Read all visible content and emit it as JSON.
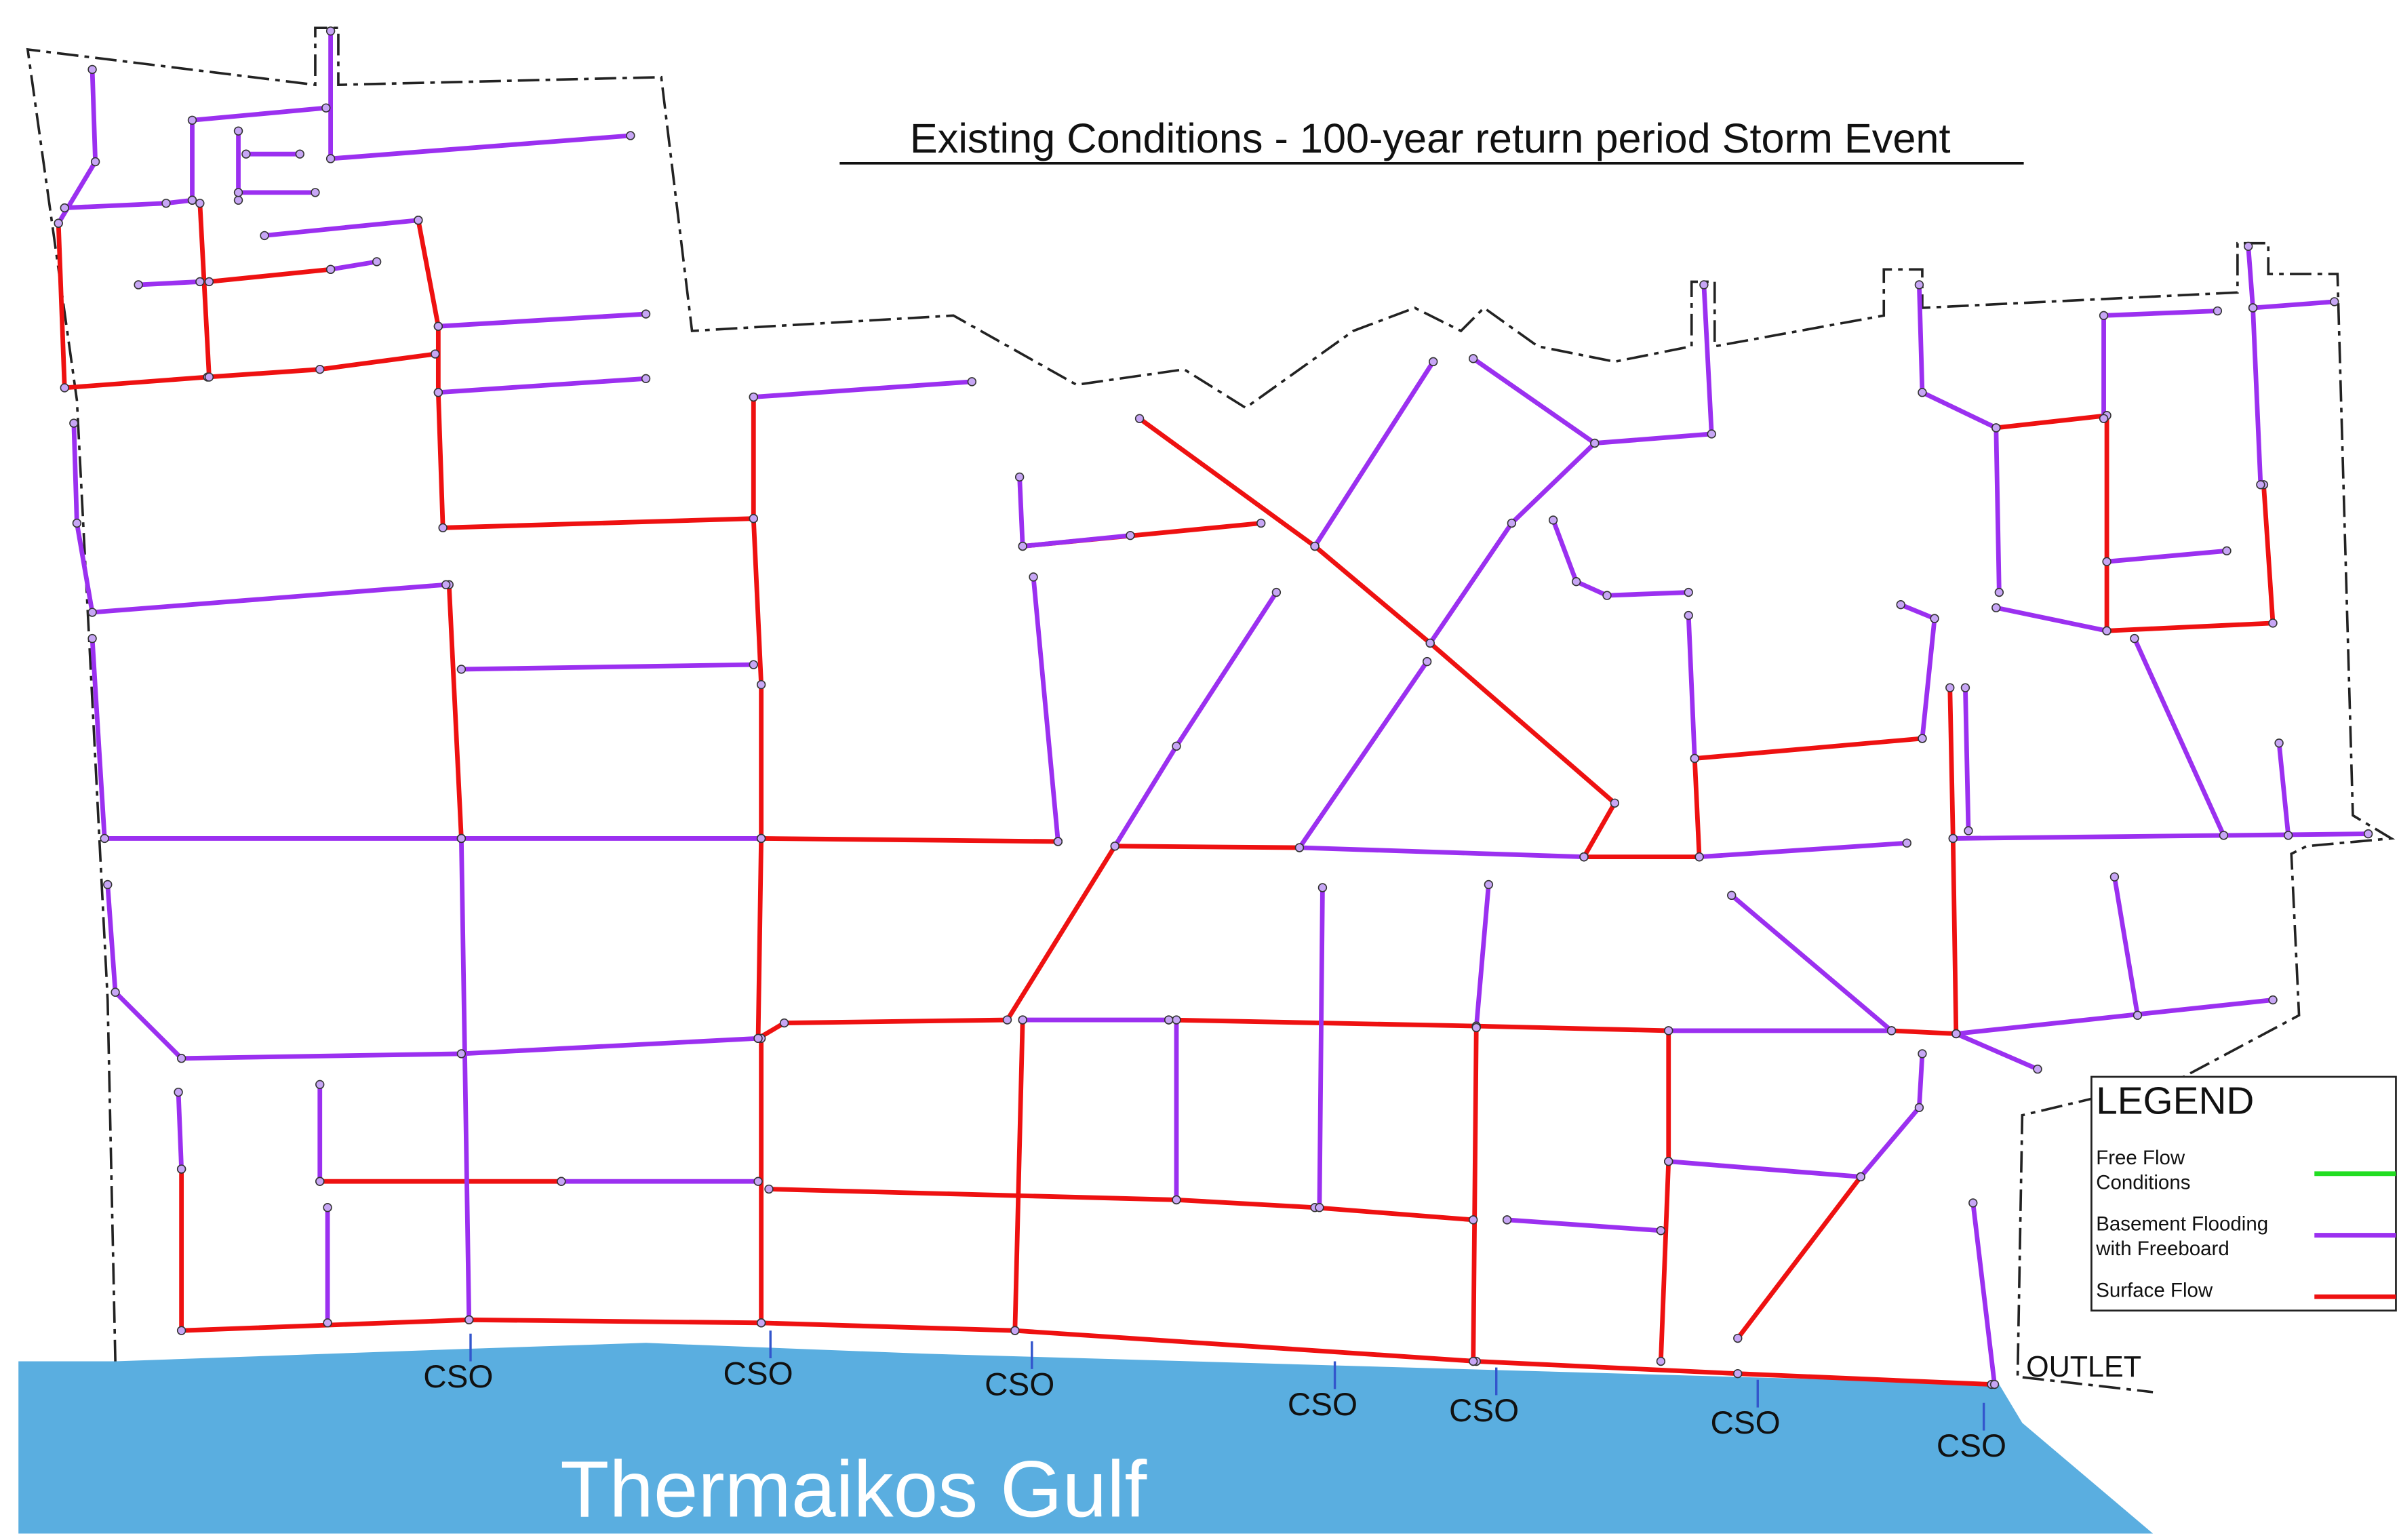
{
  "title": "Existing Conditions - 100-year return period Storm Event",
  "sea_label": "Thermaikos Gulf",
  "outlet_label": "OUTLET",
  "cso_labels": [
    "CSO",
    "CSO",
    "CSO",
    "CSO",
    "CSO",
    "CSO",
    "CSO"
  ],
  "legend": {
    "title": "LEGEND",
    "items": [
      {
        "label_lines": [
          "Free Flow",
          "Conditions"
        ],
        "color": "#22dd22"
      },
      {
        "label_lines": [
          "Basement Flooding",
          "with Freeboard"
        ],
        "color": "#9b30f0"
      },
      {
        "label_lines": [
          "Surface Flow"
        ],
        "color": "#ee1111"
      }
    ]
  }
}
